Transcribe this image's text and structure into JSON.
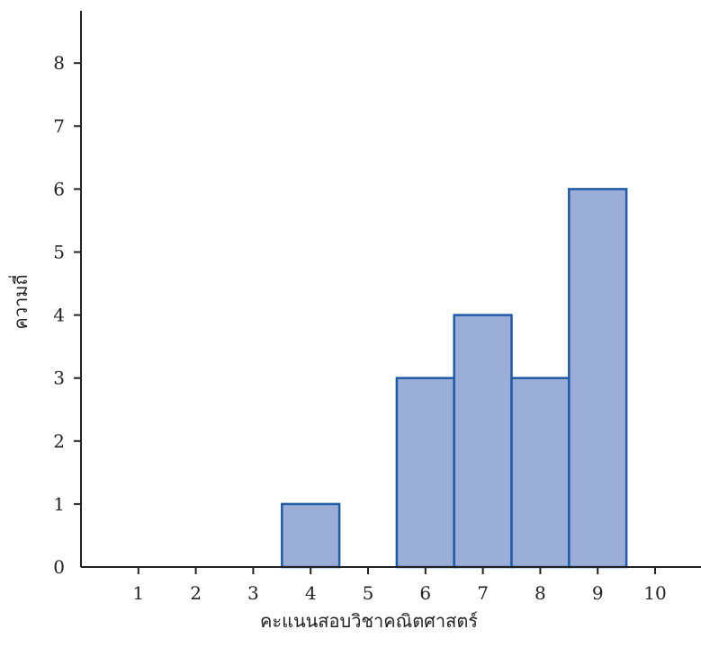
{
  "chart_data": {
    "type": "bar",
    "categories": [
      "1",
      "2",
      "3",
      "4",
      "5",
      "6",
      "7",
      "8",
      "9",
      "10"
    ],
    "values": [
      0,
      0,
      0,
      1,
      0,
      3,
      4,
      3,
      6,
      0
    ],
    "xlabel": "คะแนนสอบวิชาคณิตศาสตร์",
    "ylabel": "ความถี่",
    "ylim": [
      0,
      8
    ],
    "yticks": [
      0,
      1,
      2,
      3,
      4,
      5,
      6,
      7,
      8
    ],
    "xlim": [
      0,
      10
    ],
    "grid": false,
    "colors": {
      "bar_fill": "#9aaed8",
      "bar_stroke": "#1f5aa8",
      "axis": "#222222"
    }
  }
}
